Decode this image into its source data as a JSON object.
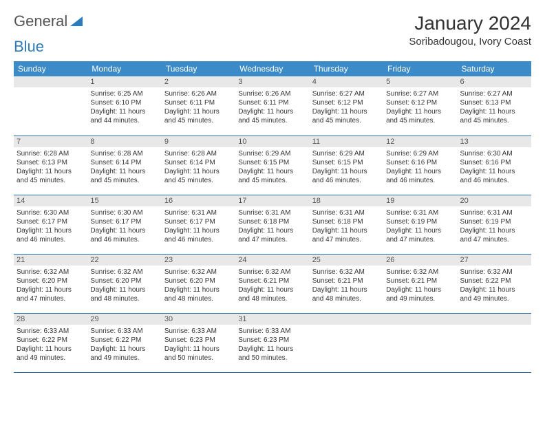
{
  "brand": {
    "part1": "General",
    "part2": "Blue"
  },
  "title": "January 2024",
  "location": "Soribadougou, Ivory Coast",
  "colors": {
    "header_bg": "#3b8bc9",
    "header_text": "#ffffff",
    "daynum_bg": "#e8e8e8",
    "row_border": "#2b6fa8",
    "logo_blue": "#2b7bbd"
  },
  "weekdays": [
    "Sunday",
    "Monday",
    "Tuesday",
    "Wednesday",
    "Thursday",
    "Friday",
    "Saturday"
  ],
  "weeks": [
    [
      null,
      {
        "n": "1",
        "sr": "Sunrise: 6:25 AM",
        "ss": "Sunset: 6:10 PM",
        "d1": "Daylight: 11 hours",
        "d2": "and 44 minutes."
      },
      {
        "n": "2",
        "sr": "Sunrise: 6:26 AM",
        "ss": "Sunset: 6:11 PM",
        "d1": "Daylight: 11 hours",
        "d2": "and 45 minutes."
      },
      {
        "n": "3",
        "sr": "Sunrise: 6:26 AM",
        "ss": "Sunset: 6:11 PM",
        "d1": "Daylight: 11 hours",
        "d2": "and 45 minutes."
      },
      {
        "n": "4",
        "sr": "Sunrise: 6:27 AM",
        "ss": "Sunset: 6:12 PM",
        "d1": "Daylight: 11 hours",
        "d2": "and 45 minutes."
      },
      {
        "n": "5",
        "sr": "Sunrise: 6:27 AM",
        "ss": "Sunset: 6:12 PM",
        "d1": "Daylight: 11 hours",
        "d2": "and 45 minutes."
      },
      {
        "n": "6",
        "sr": "Sunrise: 6:27 AM",
        "ss": "Sunset: 6:13 PM",
        "d1": "Daylight: 11 hours",
        "d2": "and 45 minutes."
      }
    ],
    [
      {
        "n": "7",
        "sr": "Sunrise: 6:28 AM",
        "ss": "Sunset: 6:13 PM",
        "d1": "Daylight: 11 hours",
        "d2": "and 45 minutes."
      },
      {
        "n": "8",
        "sr": "Sunrise: 6:28 AM",
        "ss": "Sunset: 6:14 PM",
        "d1": "Daylight: 11 hours",
        "d2": "and 45 minutes."
      },
      {
        "n": "9",
        "sr": "Sunrise: 6:28 AM",
        "ss": "Sunset: 6:14 PM",
        "d1": "Daylight: 11 hours",
        "d2": "and 45 minutes."
      },
      {
        "n": "10",
        "sr": "Sunrise: 6:29 AM",
        "ss": "Sunset: 6:15 PM",
        "d1": "Daylight: 11 hours",
        "d2": "and 45 minutes."
      },
      {
        "n": "11",
        "sr": "Sunrise: 6:29 AM",
        "ss": "Sunset: 6:15 PM",
        "d1": "Daylight: 11 hours",
        "d2": "and 46 minutes."
      },
      {
        "n": "12",
        "sr": "Sunrise: 6:29 AM",
        "ss": "Sunset: 6:16 PM",
        "d1": "Daylight: 11 hours",
        "d2": "and 46 minutes."
      },
      {
        "n": "13",
        "sr": "Sunrise: 6:30 AM",
        "ss": "Sunset: 6:16 PM",
        "d1": "Daylight: 11 hours",
        "d2": "and 46 minutes."
      }
    ],
    [
      {
        "n": "14",
        "sr": "Sunrise: 6:30 AM",
        "ss": "Sunset: 6:17 PM",
        "d1": "Daylight: 11 hours",
        "d2": "and 46 minutes."
      },
      {
        "n": "15",
        "sr": "Sunrise: 6:30 AM",
        "ss": "Sunset: 6:17 PM",
        "d1": "Daylight: 11 hours",
        "d2": "and 46 minutes."
      },
      {
        "n": "16",
        "sr": "Sunrise: 6:31 AM",
        "ss": "Sunset: 6:17 PM",
        "d1": "Daylight: 11 hours",
        "d2": "and 46 minutes."
      },
      {
        "n": "17",
        "sr": "Sunrise: 6:31 AM",
        "ss": "Sunset: 6:18 PM",
        "d1": "Daylight: 11 hours",
        "d2": "and 47 minutes."
      },
      {
        "n": "18",
        "sr": "Sunrise: 6:31 AM",
        "ss": "Sunset: 6:18 PM",
        "d1": "Daylight: 11 hours",
        "d2": "and 47 minutes."
      },
      {
        "n": "19",
        "sr": "Sunrise: 6:31 AM",
        "ss": "Sunset: 6:19 PM",
        "d1": "Daylight: 11 hours",
        "d2": "and 47 minutes."
      },
      {
        "n": "20",
        "sr": "Sunrise: 6:31 AM",
        "ss": "Sunset: 6:19 PM",
        "d1": "Daylight: 11 hours",
        "d2": "and 47 minutes."
      }
    ],
    [
      {
        "n": "21",
        "sr": "Sunrise: 6:32 AM",
        "ss": "Sunset: 6:20 PM",
        "d1": "Daylight: 11 hours",
        "d2": "and 47 minutes."
      },
      {
        "n": "22",
        "sr": "Sunrise: 6:32 AM",
        "ss": "Sunset: 6:20 PM",
        "d1": "Daylight: 11 hours",
        "d2": "and 48 minutes."
      },
      {
        "n": "23",
        "sr": "Sunrise: 6:32 AM",
        "ss": "Sunset: 6:20 PM",
        "d1": "Daylight: 11 hours",
        "d2": "and 48 minutes."
      },
      {
        "n": "24",
        "sr": "Sunrise: 6:32 AM",
        "ss": "Sunset: 6:21 PM",
        "d1": "Daylight: 11 hours",
        "d2": "and 48 minutes."
      },
      {
        "n": "25",
        "sr": "Sunrise: 6:32 AM",
        "ss": "Sunset: 6:21 PM",
        "d1": "Daylight: 11 hours",
        "d2": "and 48 minutes."
      },
      {
        "n": "26",
        "sr": "Sunrise: 6:32 AM",
        "ss": "Sunset: 6:21 PM",
        "d1": "Daylight: 11 hours",
        "d2": "and 49 minutes."
      },
      {
        "n": "27",
        "sr": "Sunrise: 6:32 AM",
        "ss": "Sunset: 6:22 PM",
        "d1": "Daylight: 11 hours",
        "d2": "and 49 minutes."
      }
    ],
    [
      {
        "n": "28",
        "sr": "Sunrise: 6:33 AM",
        "ss": "Sunset: 6:22 PM",
        "d1": "Daylight: 11 hours",
        "d2": "and 49 minutes."
      },
      {
        "n": "29",
        "sr": "Sunrise: 6:33 AM",
        "ss": "Sunset: 6:22 PM",
        "d1": "Daylight: 11 hours",
        "d2": "and 49 minutes."
      },
      {
        "n": "30",
        "sr": "Sunrise: 6:33 AM",
        "ss": "Sunset: 6:23 PM",
        "d1": "Daylight: 11 hours",
        "d2": "and 50 minutes."
      },
      {
        "n": "31",
        "sr": "Sunrise: 6:33 AM",
        "ss": "Sunset: 6:23 PM",
        "d1": "Daylight: 11 hours",
        "d2": "and 50 minutes."
      },
      null,
      null,
      null
    ]
  ]
}
